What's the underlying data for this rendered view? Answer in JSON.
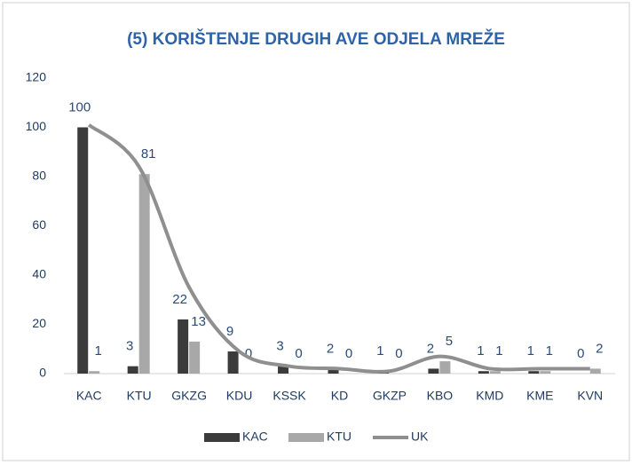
{
  "chart_data": {
    "type": "bar",
    "title": "(5) KORIŠTENJE DRUGIH AVE ODJELA MREŽE",
    "categories": [
      "KAC",
      "KTU",
      "GKZG",
      "KDU",
      "KSSK",
      "KD",
      "GKZP",
      "KBO",
      "KMD",
      "KME",
      "KVN"
    ],
    "series": [
      {
        "name": "KAC",
        "color": "#3b3b3b",
        "values": [
          100,
          3,
          22,
          9,
          3,
          2,
          1,
          2,
          1,
          1,
          0
        ]
      },
      {
        "name": "KTU",
        "color": "#a8a8a8",
        "values": [
          1,
          81,
          13,
          0,
          0,
          0,
          0,
          5,
          1,
          1,
          2
        ]
      },
      {
        "name": "UK",
        "color": "#8f8f8f",
        "type": "line",
        "values": [
          101,
          84,
          35,
          9,
          3,
          2,
          1,
          7,
          2,
          2,
          2
        ]
      }
    ],
    "data_labels": [
      "KAC",
      "KTU"
    ],
    "ylim": [
      0,
      120
    ],
    "yticks": [
      0,
      20,
      40,
      60,
      80,
      100,
      120
    ],
    "grid": false,
    "legend": "bottom"
  }
}
